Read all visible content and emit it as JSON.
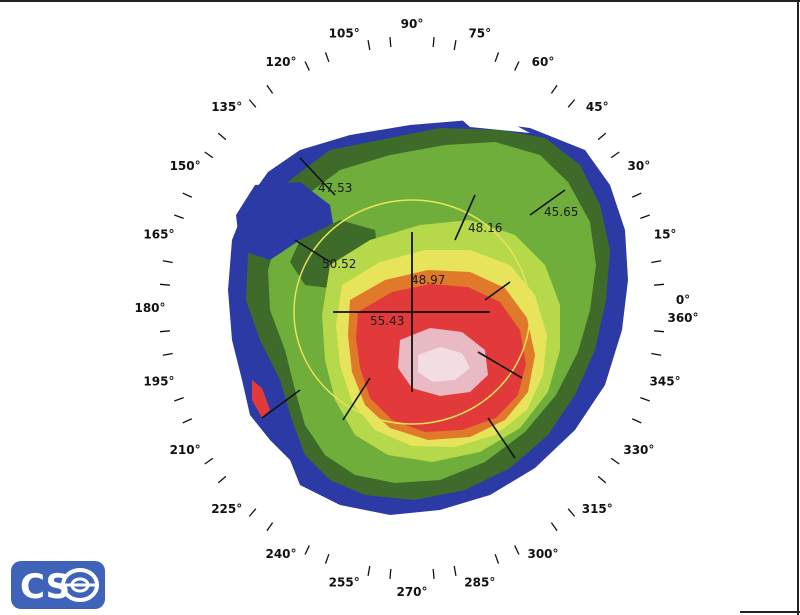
{
  "angle_labels": [
    "0°",
    "15°",
    "30°",
    "45°",
    "60°",
    "75°",
    "90°",
    "105°",
    "120°",
    "135°",
    "150°",
    "165°",
    "180°",
    "195°",
    "210°",
    "225°",
    "240°",
    "255°",
    "270°",
    "285°",
    "300°",
    "315°",
    "330°",
    "345°",
    "360°"
  ],
  "angle_values": [
    0,
    15,
    30,
    45,
    60,
    75,
    90,
    105,
    120,
    135,
    150,
    165,
    180,
    195,
    210,
    225,
    240,
    255,
    270,
    285,
    300,
    315,
    330,
    345,
    360
  ],
  "readings": [
    {
      "label": "47.53",
      "value": 47.53
    },
    {
      "label": "48.16",
      "value": 48.16
    },
    {
      "label": "45.65",
      "value": 45.65
    },
    {
      "label": "50.52",
      "value": 50.52
    },
    {
      "label": "48.97",
      "value": 48.97
    },
    {
      "label": "55.43",
      "value": 55.43
    }
  ],
  "logo": {
    "text": "CSO"
  },
  "colors": {
    "low": "#2c3aa6",
    "mid_dark": "#3e6b2a",
    "mid": "#6fae3b",
    "light": "#b5d94a",
    "yellow": "#e7e35a",
    "orange": "#e07a2a",
    "high": "#e23a3a",
    "peak": "#e9b9c4",
    "overlay": "#e7e35a"
  }
}
